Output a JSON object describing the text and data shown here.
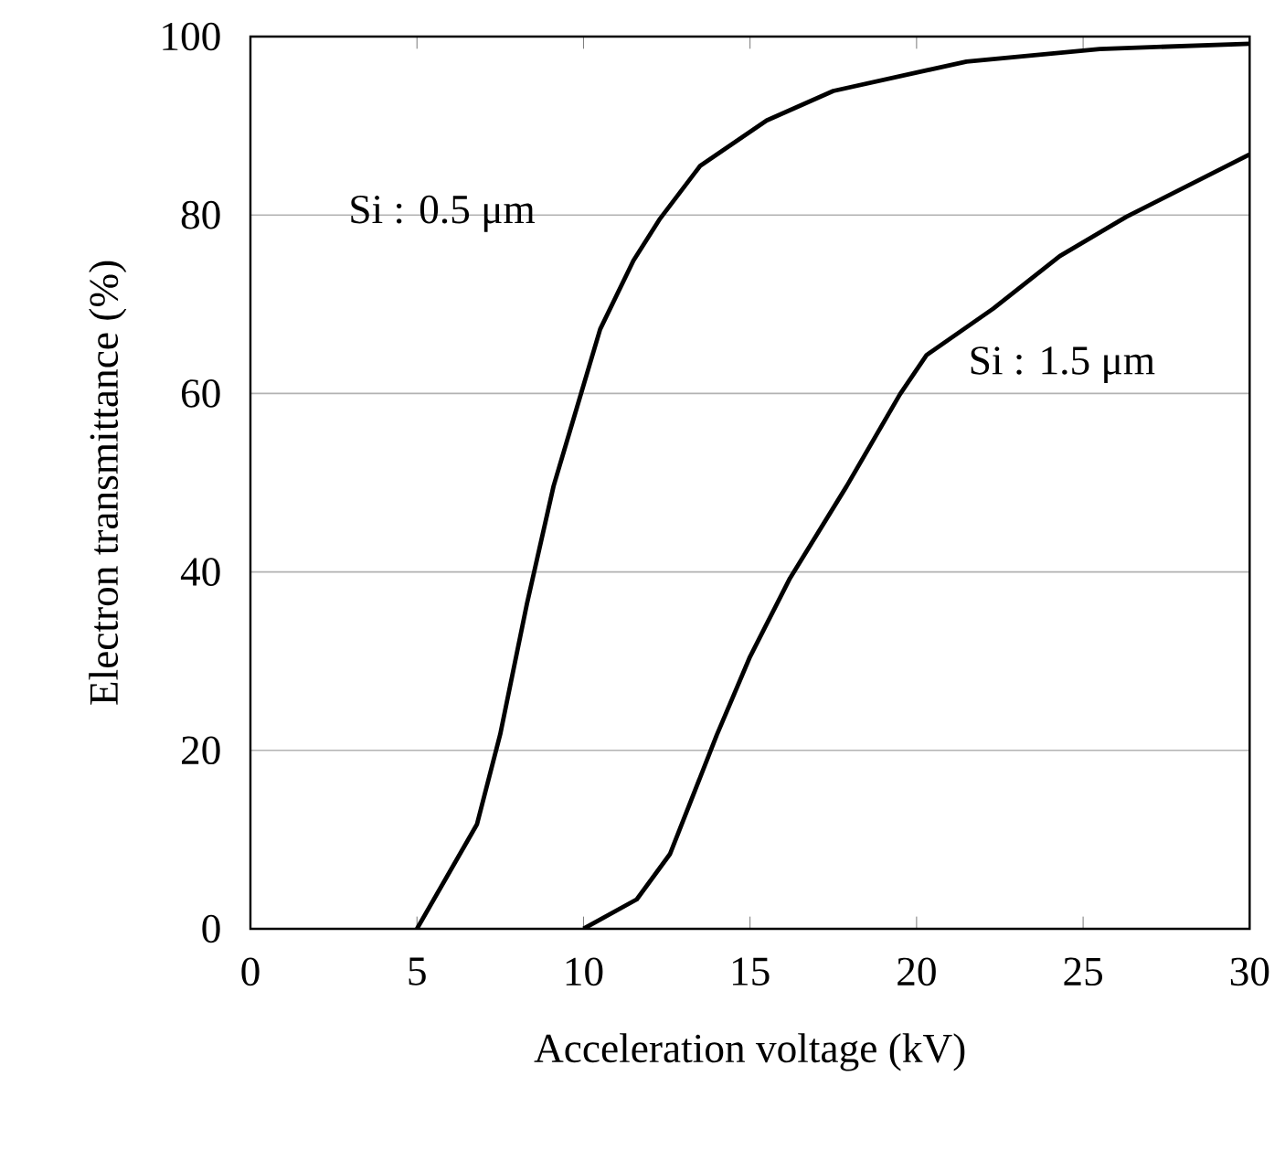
{
  "chart_data": {
    "type": "line",
    "xlabel": "Acceleration voltage (kV)",
    "ylabel": "Electron transmittance (%)",
    "xlim": [
      0,
      30
    ],
    "ylim": [
      0,
      100
    ],
    "xticks": [
      0,
      5,
      10,
      15,
      20,
      25,
      30
    ],
    "yticks": [
      0,
      20,
      40,
      60,
      80,
      100
    ],
    "grid": "y",
    "marker": "none",
    "line_style": "solid",
    "series": [
      {
        "name": "Si : 0.5 μm",
        "color": "#000000",
        "x": [
          5,
          6.8,
          7.5,
          8.3,
          9.1,
          9.8,
          10.5,
          11.5,
          12.3,
          13.5,
          15.5,
          17.5,
          21.5,
          25.5,
          30
        ],
        "values": [
          0,
          11.7,
          21.8,
          36.4,
          49.6,
          58.4,
          67.2,
          74.9,
          79.6,
          85.5,
          90.6,
          93.9,
          97.2,
          98.6,
          99.2
        ]
      },
      {
        "name": "Si : 1.5 μm",
        "color": "#000000",
        "x": [
          10,
          11.6,
          12.6,
          14,
          15,
          16.2,
          17.9,
          19.5,
          20.3,
          22.3,
          24.3,
          26.3,
          30
        ],
        "values": [
          0,
          3.3,
          8.4,
          21.7,
          30.5,
          39.3,
          49.6,
          59.9,
          64.3,
          69.5,
          75.4,
          79.8,
          86.8
        ]
      }
    ]
  }
}
